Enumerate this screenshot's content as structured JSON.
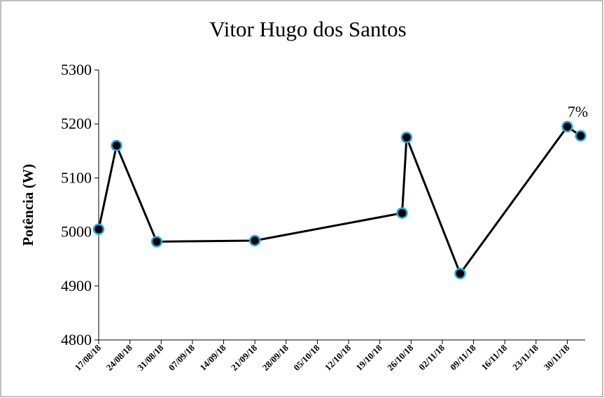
{
  "chart_data": {
    "type": "line",
    "title": "Vitor Hugo dos Santos",
    "ylabel": "Potência (W)",
    "x": [
      "2018-08-17",
      "2018-08-21",
      "2018-08-30",
      "2018-09-21",
      "2018-10-24",
      "2018-10-25",
      "2018-11-06",
      "2018-11-30",
      "2018-12-03"
    ],
    "series": [
      {
        "name": "Potência",
        "color": "#000000",
        "marker_edge": "#29abe2",
        "values": [
          5005,
          5160,
          4982,
          4984,
          5035,
          5175,
          4923,
          5195,
          5178
        ]
      }
    ],
    "annotation": "7%",
    "xlim": [
      "2018-08-17",
      "2018-12-04"
    ],
    "xticks": [
      {
        "value": "2018-08-17",
        "label": "17/08/18"
      },
      {
        "value": "2018-08-24",
        "label": "24/08/18"
      },
      {
        "value": "2018-08-31",
        "label": "31/08/18"
      },
      {
        "value": "2018-09-07",
        "label": "07/09/18"
      },
      {
        "value": "2018-09-14",
        "label": "14/09/18"
      },
      {
        "value": "2018-09-21",
        "label": "21/09/18"
      },
      {
        "value": "2018-09-28",
        "label": "28/09/18"
      },
      {
        "value": "2018-10-05",
        "label": "05/10/18"
      },
      {
        "value": "2018-10-12",
        "label": "12/10/18"
      },
      {
        "value": "2018-10-19",
        "label": "19/10/18"
      },
      {
        "value": "2018-10-26",
        "label": "26/10/18"
      },
      {
        "value": "2018-11-02",
        "label": "02/11/18"
      },
      {
        "value": "2018-11-09",
        "label": "09/11/18"
      },
      {
        "value": "2018-11-16",
        "label": "16/11/18"
      },
      {
        "value": "2018-11-23",
        "label": "23/11/18"
      },
      {
        "value": "2018-11-30",
        "label": "30/11/18"
      }
    ],
    "ylim": [
      4800,
      5300
    ],
    "yticks": [
      4800,
      4900,
      5000,
      5100,
      5200,
      5300
    ],
    "grid": false
  }
}
